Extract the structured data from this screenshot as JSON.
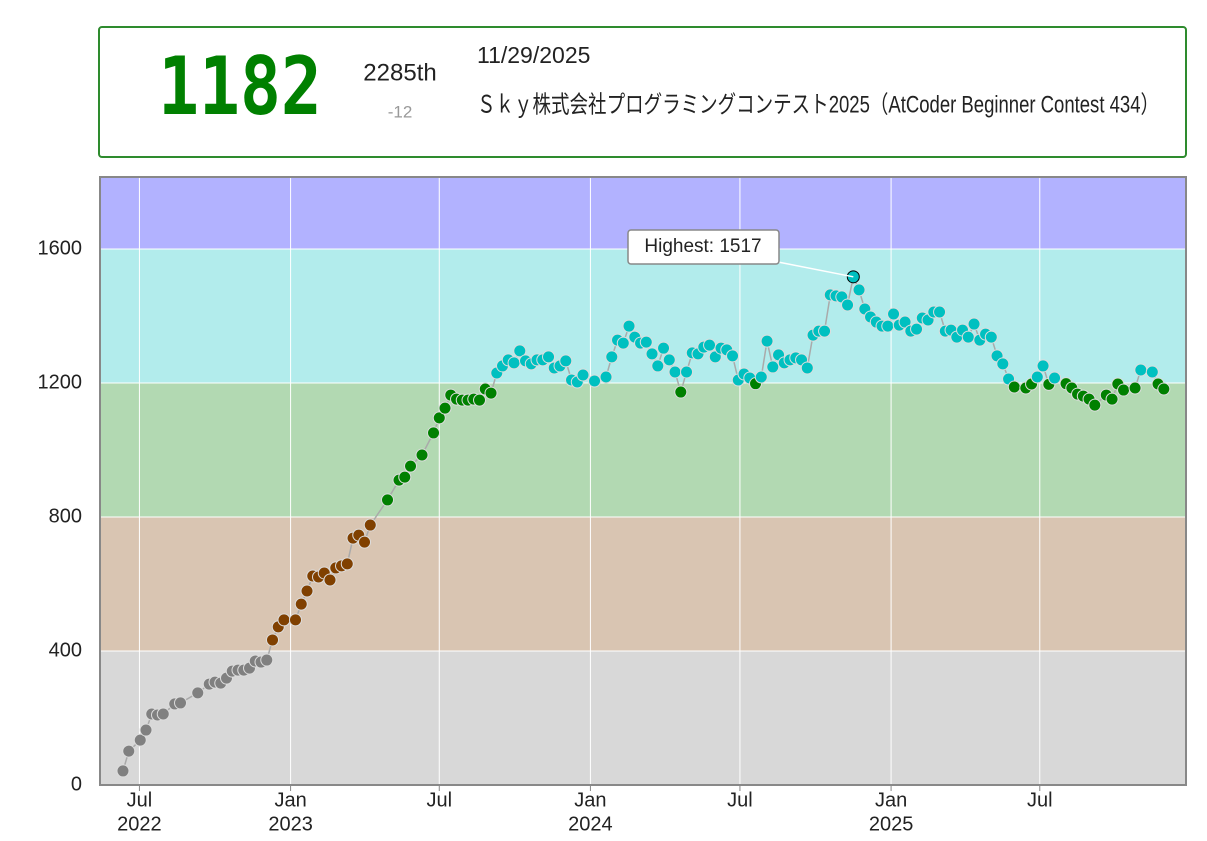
{
  "header": {
    "rating": "1182",
    "rank": "2285th",
    "rank_change": "-12",
    "date": "11/29/2025",
    "contest": "Ｓｋｙ株式会社プログラミングコンテスト2025（AtCoder Beginner Contest 434）"
  },
  "chart_data": {
    "type": "line",
    "x": [
      "2022-06-11",
      "2022-06-18",
      "2022-07-02",
      "2022-07-09",
      "2022-07-16",
      "2022-07-23",
      "2022-07-30",
      "2022-08-13",
      "2022-08-20",
      "2022-09-10",
      "2022-09-24",
      "2022-10-01",
      "2022-10-08",
      "2022-10-15",
      "2022-10-22",
      "2022-10-29",
      "2022-11-05",
      "2022-11-12",
      "2022-11-19",
      "2022-11-26",
      "2022-12-03",
      "2022-12-10",
      "2022-12-17",
      "2022-12-24",
      "2023-01-07",
      "2023-01-14",
      "2023-01-21",
      "2023-01-28",
      "2023-02-04",
      "2023-02-11",
      "2023-02-18",
      "2023-02-25",
      "2023-03-04",
      "2023-03-11",
      "2023-03-18",
      "2023-03-25",
      "2023-04-01",
      "2023-04-08",
      "2023-04-29",
      "2023-05-13",
      "2023-05-20",
      "2023-05-27",
      "2023-06-10",
      "2023-06-24",
      "2023-07-01",
      "2023-07-08",
      "2023-07-15",
      "2023-07-22",
      "2023-07-29",
      "2023-08-05",
      "2023-08-12",
      "2023-08-19",
      "2023-08-26",
      "2023-09-02",
      "2023-09-09",
      "2023-09-16",
      "2023-09-23",
      "2023-09-30",
      "2023-10-07",
      "2023-10-14",
      "2023-10-21",
      "2023-10-28",
      "2023-11-04",
      "2023-11-11",
      "2023-11-18",
      "2023-11-25",
      "2023-12-02",
      "2023-12-09",
      "2023-12-16",
      "2023-12-23",
      "2024-01-06",
      "2024-01-20",
      "2024-01-27",
      "2024-02-03",
      "2024-02-10",
      "2024-02-17",
      "2024-02-24",
      "2024-03-02",
      "2024-03-09",
      "2024-03-16",
      "2024-03-23",
      "2024-03-30",
      "2024-04-06",
      "2024-04-13",
      "2024-04-20",
      "2024-04-27",
      "2024-05-04",
      "2024-05-11",
      "2024-05-18",
      "2024-05-25",
      "2024-06-01",
      "2024-06-08",
      "2024-06-15",
      "2024-06-22",
      "2024-06-29",
      "2024-07-06",
      "2024-07-13",
      "2024-07-20",
      "2024-07-27",
      "2024-08-03",
      "2024-08-10",
      "2024-08-17",
      "2024-08-24",
      "2024-08-31",
      "2024-09-07",
      "2024-09-14",
      "2024-09-21",
      "2024-09-28",
      "2024-10-05",
      "2024-10-12",
      "2024-10-19",
      "2024-10-26",
      "2024-11-02",
      "2024-11-09",
      "2024-11-16",
      "2024-11-23",
      "2024-11-30",
      "2024-12-07",
      "2024-12-14",
      "2024-12-21",
      "2024-12-28",
      "2025-01-04",
      "2025-01-11",
      "2025-01-18",
      "2025-01-25",
      "2025-02-01",
      "2025-02-08",
      "2025-02-15",
      "2025-02-22",
      "2025-03-01",
      "2025-03-08",
      "2025-03-15",
      "2025-03-22",
      "2025-03-29",
      "2025-04-05",
      "2025-04-12",
      "2025-04-19",
      "2025-04-26",
      "2025-05-03",
      "2025-05-10",
      "2025-05-17",
      "2025-05-24",
      "2025-05-31",
      "2025-06-14",
      "2025-06-21",
      "2025-06-28",
      "2025-07-05",
      "2025-07-12",
      "2025-07-19",
      "2025-08-02",
      "2025-08-09",
      "2025-08-16",
      "2025-08-23",
      "2025-08-30",
      "2025-09-06",
      "2025-09-20",
      "2025-09-27",
      "2025-10-04",
      "2025-10-11",
      "2025-10-25",
      "2025-11-01",
      "2025-11-15",
      "2025-11-22",
      "2025-11-29"
    ],
    "values": [
      42,
      101,
      134,
      164,
      212,
      209,
      212,
      242,
      245,
      275,
      301,
      307,
      304,
      319,
      340,
      343,
      343,
      349,
      370,
      367,
      373,
      433,
      472,
      493,
      493,
      540,
      579,
      624,
      621,
      633,
      612,
      648,
      654,
      660,
      737,
      746,
      725,
      776,
      851,
      910,
      919,
      952,
      985,
      1051,
      1096,
      1125,
      1164,
      1152,
      1149,
      1149,
      1152,
      1149,
      1182,
      1170,
      1230,
      1251,
      1269,
      1260,
      1296,
      1266,
      1257,
      1269,
      1269,
      1278,
      1245,
      1251,
      1266,
      1209,
      1203,
      1224,
      1206,
      1218,
      1278,
      1328,
      1319,
      1370,
      1337,
      1319,
      1322,
      1287,
      1251,
      1304,
      1269,
      1233,
      1173,
      1233,
      1290,
      1287,
      1307,
      1313,
      1278,
      1304,
      1299,
      1281,
      1209,
      1227,
      1215,
      1198,
      1218,
      1325,
      1248,
      1284,
      1260,
      1269,
      1275,
      1269,
      1245,
      1343,
      1355,
      1355,
      1463,
      1460,
      1457,
      1433,
      1517,
      1478,
      1421,
      1397,
      1382,
      1370,
      1370,
      1406,
      1373,
      1382,
      1355,
      1361,
      1394,
      1388,
      1412,
      1412,
      1355,
      1358,
      1337,
      1358,
      1337,
      1376,
      1328,
      1346,
      1337,
      1281,
      1257,
      1212,
      1188,
      1185,
      1197,
      1218,
      1251,
      1196,
      1215,
      1198,
      1185,
      1167,
      1161,
      1152,
      1134,
      1164,
      1152,
      1197,
      1179,
      1185,
      1239,
      1233,
      1197,
      1182
    ],
    "xlim": [
      "2022-05-14",
      "2025-12-26"
    ],
    "xticks": [
      {
        "value": "2022-07-01",
        "label": "Jul",
        "sublabel": "2022"
      },
      {
        "value": "2023-01-01",
        "label": "Jan",
        "sublabel": "2023"
      },
      {
        "value": "2023-07-01",
        "label": "Jul"
      },
      {
        "value": "2024-01-01",
        "label": "Jan",
        "sublabel": "2024"
      },
      {
        "value": "2024-07-01",
        "label": "Jul"
      },
      {
        "value": "2025-01-01",
        "label": "Jan",
        "sublabel": "2025"
      },
      {
        "value": "2025-07-01",
        "label": "Jul"
      }
    ],
    "ylim": [
      0,
      1815
    ],
    "yticks": [
      0,
      400,
      800,
      1200,
      1600
    ],
    "grid": true,
    "bands": [
      {
        "from": 0,
        "to": 400,
        "color": "#d8d8d8",
        "point_color": "#808080"
      },
      {
        "from": 400,
        "to": 800,
        "color": "#d9c5b2",
        "point_color": "#804000"
      },
      {
        "from": 800,
        "to": 1200,
        "color": "#b2d9b2",
        "point_color": "#008000"
      },
      {
        "from": 1200,
        "to": 1600,
        "color": "#b2ecec",
        "point_color": "#00c0c0"
      },
      {
        "from": 1600,
        "to": 2000,
        "color": "#b2b2ff",
        "point_color": "#0000ff"
      }
    ],
    "annotation": "Highest: 1517"
  }
}
